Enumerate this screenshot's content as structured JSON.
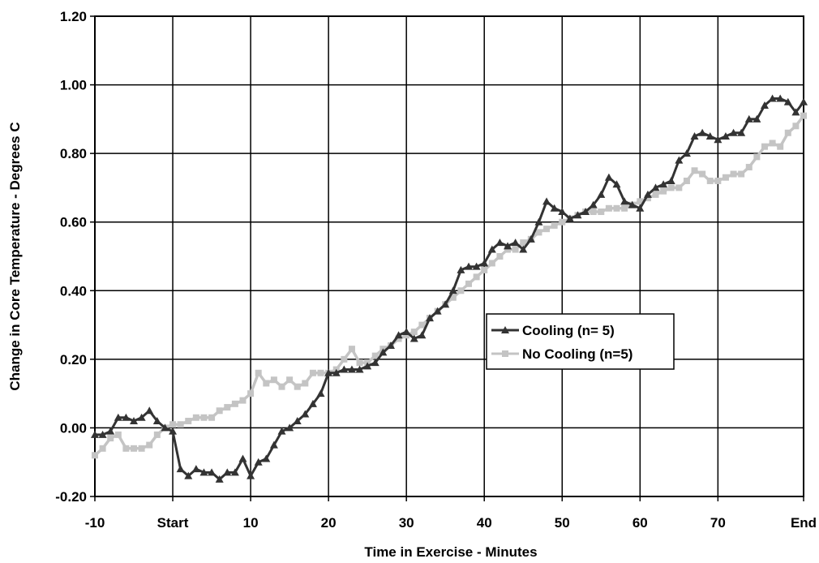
{
  "chart_data": {
    "type": "line",
    "xlabel": "Time in Exercise - Minutes",
    "ylabel": "Change in Core Temperature - Degrees C",
    "xlim": [
      -10,
      81
    ],
    "ylim": [
      -0.2,
      1.2
    ],
    "x_ticks": [
      {
        "value": -10,
        "label": "-10"
      },
      {
        "value": 0,
        "label": "Start"
      },
      {
        "value": 10,
        "label": "10"
      },
      {
        "value": 20,
        "label": "20"
      },
      {
        "value": 30,
        "label": "30"
      },
      {
        "value": 40,
        "label": "40"
      },
      {
        "value": 50,
        "label": "50"
      },
      {
        "value": 60,
        "label": "60"
      },
      {
        "value": 70,
        "label": "70"
      },
      {
        "value": 81,
        "label": "End"
      }
    ],
    "y_ticks": [
      {
        "value": -0.2,
        "label": "-0.20"
      },
      {
        "value": 0.0,
        "label": "0.00"
      },
      {
        "value": 0.2,
        "label": "0.20"
      },
      {
        "value": 0.4,
        "label": "0.40"
      },
      {
        "value": 0.6,
        "label": "0.60"
      },
      {
        "value": 0.8,
        "label": "0.80"
      },
      {
        "value": 1.0,
        "label": "1.00"
      },
      {
        "value": 1.2,
        "label": "1.20"
      }
    ],
    "grid": true,
    "legend_position": "center-right",
    "series": [
      {
        "name": "Cooling (n= 5)",
        "color": "#333333",
        "marker": "triangle",
        "x": [
          -10,
          -9,
          -8,
          -7,
          -6,
          -5,
          -4,
          -3,
          -2,
          -1,
          0,
          1,
          2,
          3,
          4,
          5,
          6,
          7,
          8,
          9,
          10,
          11,
          12,
          13,
          14,
          15,
          16,
          17,
          18,
          19,
          20,
          21,
          22,
          23,
          24,
          25,
          26,
          27,
          28,
          29,
          30,
          31,
          32,
          33,
          34,
          35,
          36,
          37,
          38,
          39,
          40,
          41,
          42,
          43,
          44,
          45,
          46,
          47,
          48,
          49,
          50,
          51,
          52,
          53,
          54,
          55,
          56,
          57,
          58,
          59,
          60,
          61,
          62,
          63,
          64,
          65,
          66,
          67,
          68,
          69,
          70,
          71,
          72,
          73,
          74,
          75,
          76,
          77,
          78,
          79,
          80,
          81
        ],
        "values": [
          -0.02,
          -0.02,
          -0.01,
          0.03,
          0.03,
          0.02,
          0.03,
          0.05,
          0.02,
          0.0,
          -0.01,
          -0.12,
          -0.14,
          -0.12,
          -0.13,
          -0.13,
          -0.15,
          -0.13,
          -0.13,
          -0.09,
          -0.14,
          -0.1,
          -0.09,
          -0.05,
          -0.01,
          0.0,
          0.02,
          0.04,
          0.07,
          0.1,
          0.16,
          0.16,
          0.17,
          0.17,
          0.17,
          0.18,
          0.19,
          0.22,
          0.24,
          0.27,
          0.28,
          0.26,
          0.27,
          0.32,
          0.34,
          0.36,
          0.4,
          0.46,
          0.47,
          0.47,
          0.48,
          0.52,
          0.54,
          0.53,
          0.54,
          0.52,
          0.55,
          0.6,
          0.66,
          0.64,
          0.63,
          0.61,
          0.62,
          0.63,
          0.65,
          0.68,
          0.73,
          0.71,
          0.66,
          0.65,
          0.64,
          0.68,
          0.7,
          0.71,
          0.72,
          0.78,
          0.8,
          0.85,
          0.86,
          0.85,
          0.84,
          0.85,
          0.86,
          0.86,
          0.9,
          0.9,
          0.94,
          0.96,
          0.96,
          0.95,
          0.92,
          0.95
        ]
      },
      {
        "name": "No Cooling (n=5)",
        "color": "#c4c4c4",
        "marker": "square",
        "x": [
          -10,
          -9,
          -8,
          -7,
          -6,
          -5,
          -4,
          -3,
          -2,
          -1,
          0,
          1,
          2,
          3,
          4,
          5,
          6,
          7,
          8,
          9,
          10,
          11,
          12,
          13,
          14,
          15,
          16,
          17,
          18,
          19,
          20,
          21,
          22,
          23,
          24,
          25,
          26,
          27,
          28,
          29,
          30,
          31,
          32,
          33,
          34,
          35,
          36,
          37,
          38,
          39,
          40,
          41,
          42,
          43,
          44,
          45,
          46,
          47,
          48,
          49,
          50,
          51,
          52,
          53,
          54,
          55,
          56,
          57,
          58,
          59,
          60,
          61,
          62,
          63,
          64,
          65,
          66,
          67,
          68,
          69,
          70,
          71,
          72,
          73,
          74,
          75,
          76,
          77,
          78,
          79,
          80,
          81
        ],
        "values": [
          -0.08,
          -0.06,
          -0.03,
          -0.02,
          -0.06,
          -0.06,
          -0.06,
          -0.05,
          -0.02,
          0.0,
          0.01,
          0.01,
          0.02,
          0.03,
          0.03,
          0.03,
          0.05,
          0.06,
          0.07,
          0.08,
          0.1,
          0.16,
          0.13,
          0.14,
          0.12,
          0.14,
          0.12,
          0.13,
          0.16,
          0.16,
          0.16,
          0.17,
          0.2,
          0.23,
          0.19,
          0.19,
          0.21,
          0.23,
          0.24,
          0.26,
          0.27,
          0.28,
          0.3,
          0.32,
          0.34,
          0.36,
          0.38,
          0.4,
          0.42,
          0.44,
          0.46,
          0.48,
          0.5,
          0.52,
          0.52,
          0.54,
          0.55,
          0.57,
          0.58,
          0.59,
          0.6,
          0.61,
          0.62,
          0.63,
          0.63,
          0.63,
          0.64,
          0.64,
          0.64,
          0.65,
          0.66,
          0.67,
          0.68,
          0.69,
          0.7,
          0.7,
          0.72,
          0.75,
          0.74,
          0.72,
          0.72,
          0.73,
          0.74,
          0.74,
          0.76,
          0.79,
          0.82,
          0.83,
          0.82,
          0.86,
          0.88,
          0.91
        ]
      }
    ]
  }
}
